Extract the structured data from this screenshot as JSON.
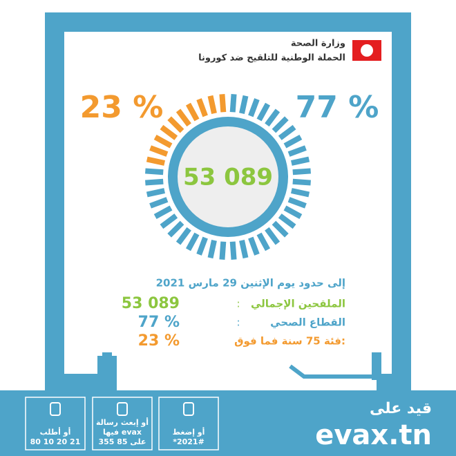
{
  "header": {
    "line1": "وزارة الصحة",
    "line2": "الحملة الوطنية للتلقيح ضد كورونا"
  },
  "chart_data": {
    "type": "donut",
    "categories": [
      "القطاع الصحي",
      "فئة 75 سنة فما فوق:"
    ],
    "values": [
      77,
      23
    ],
    "value_labels": [
      "77 %",
      "23 %"
    ],
    "colors": [
      "#4ea4c9",
      "#f39a2f"
    ],
    "total": {
      "value": 53089,
      "label": "53 089"
    }
  },
  "summary": {
    "date": "إلى حدود يوم الإثنين 29 مارس 2021",
    "total_label": "الملقحين الإجمالي",
    "colon": ":"
  },
  "footer": {
    "title": "قيد على",
    "site": "evax.tn",
    "boxes": [
      [
        "أو إضغط",
        "*2021#"
      ],
      [
        "أو إبعث رسالة",
        "فيها evax",
        "على 85 355"
      ],
      [
        "أو أطلب",
        "80 10 20 21"
      ]
    ]
  }
}
